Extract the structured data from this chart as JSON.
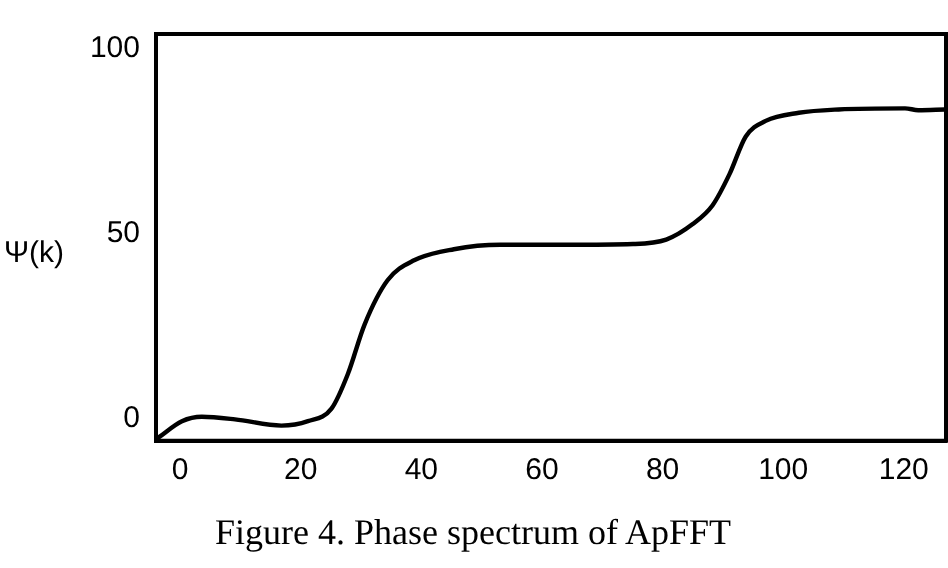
{
  "chart_data": {
    "type": "line",
    "title": "Figure 4. Phase spectrum of ApFFT",
    "ylabel": "Ψ(k)",
    "x": [
      -3.5,
      0.3,
      3.6,
      9.1,
      16.8,
      21.2,
      25.1,
      27.8,
      30.6,
      34.4,
      38.8,
      45.4,
      53.1,
      64.1,
      75.1,
      80.6,
      85.0,
      88.3,
      91.1,
      93.8,
      97.1,
      102.6,
      109.2,
      120.2,
      122.4,
      126.8
    ],
    "series": [
      {
        "color": "#000000",
        "values": [
          -5,
          -0.7,
          0.5,
          -0.2,
          -1.9,
          -0.7,
          2.7,
          12,
          25.5,
          37.4,
          42.8,
          45.8,
          47,
          47,
          47.2,
          48.4,
          52.6,
          57.7,
          66.1,
          76.3,
          80.5,
          82.7,
          83.6,
          83.9,
          83.4,
          83.6
        ]
      }
    ],
    "xlim": [
      -4,
      127
    ],
    "ylim": [
      -6,
      104
    ],
    "xticks": [
      0,
      20,
      40,
      60,
      80,
      100,
      120
    ],
    "yticks": [
      0,
      50,
      100
    ],
    "grid": false,
    "legend": false,
    "marker": "none",
    "line_style": "solid"
  }
}
